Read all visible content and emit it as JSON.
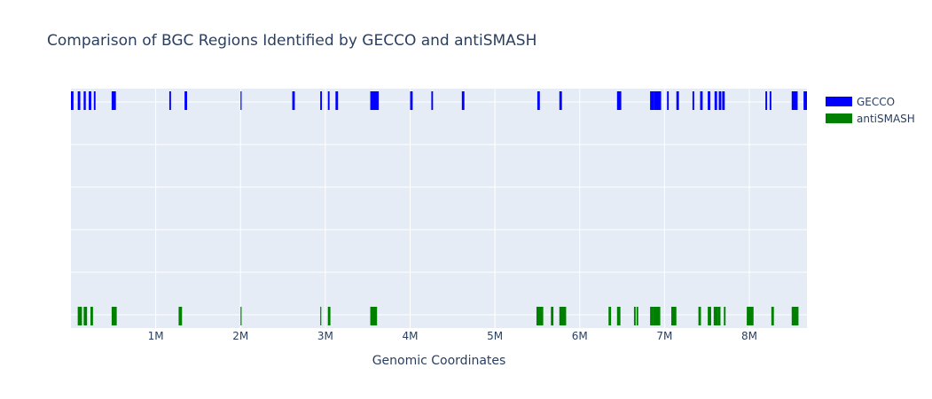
{
  "chart_data": {
    "type": "bar",
    "orientation": "horizontal-interval",
    "title": "Comparison of BGC Regions Identified by GECCO and antiSMASH",
    "xlabel": "Genomic Coordinates",
    "ylabel": "",
    "xlim": [
      0,
      8680000
    ],
    "xticks": [
      1000000,
      2000000,
      3000000,
      4000000,
      5000000,
      6000000,
      7000000,
      8000000
    ],
    "xtick_labels": [
      "1M",
      "2M",
      "3M",
      "4M",
      "5M",
      "6M",
      "7M",
      "8M"
    ],
    "grid": true,
    "legend_position": "top-right",
    "series": [
      {
        "name": "GECCO",
        "color": "#0000ff",
        "regions": [
          [
            0,
            30000
          ],
          [
            80000,
            110000
          ],
          [
            150000,
            175000
          ],
          [
            210000,
            240000
          ],
          [
            270000,
            290000
          ],
          [
            480000,
            530000
          ],
          [
            1160000,
            1180000
          ],
          [
            1340000,
            1370000
          ],
          [
            2000000,
            2010000
          ],
          [
            2610000,
            2640000
          ],
          [
            2940000,
            2960000
          ],
          [
            3030000,
            3050000
          ],
          [
            3120000,
            3150000
          ],
          [
            3530000,
            3630000
          ],
          [
            4000000,
            4030000
          ],
          [
            4250000,
            4270000
          ],
          [
            4610000,
            4640000
          ],
          [
            5500000,
            5530000
          ],
          [
            5760000,
            5790000
          ],
          [
            6440000,
            6490000
          ],
          [
            6830000,
            6880000
          ],
          [
            6880000,
            6960000
          ],
          [
            7030000,
            7050000
          ],
          [
            7140000,
            7170000
          ],
          [
            7330000,
            7350000
          ],
          [
            7420000,
            7450000
          ],
          [
            7510000,
            7540000
          ],
          [
            7590000,
            7620000
          ],
          [
            7640000,
            7670000
          ],
          [
            7680000,
            7710000
          ],
          [
            8190000,
            8210000
          ],
          [
            8240000,
            8260000
          ],
          [
            8500000,
            8570000
          ],
          [
            8640000,
            8680000
          ]
        ]
      },
      {
        "name": "antiSMASH",
        "color": "#008000",
        "regions": [
          [
            80000,
            130000
          ],
          [
            150000,
            190000
          ],
          [
            230000,
            260000
          ],
          [
            480000,
            540000
          ],
          [
            1270000,
            1310000
          ],
          [
            2000000,
            2010000
          ],
          [
            2940000,
            2950000
          ],
          [
            3030000,
            3060000
          ],
          [
            3530000,
            3610000
          ],
          [
            5490000,
            5570000
          ],
          [
            5660000,
            5690000
          ],
          [
            5760000,
            5840000
          ],
          [
            6340000,
            6370000
          ],
          [
            6440000,
            6480000
          ],
          [
            6640000,
            6660000
          ],
          [
            6670000,
            6690000
          ],
          [
            6830000,
            6870000
          ],
          [
            6870000,
            6950000
          ],
          [
            7080000,
            7140000
          ],
          [
            7400000,
            7430000
          ],
          [
            7510000,
            7550000
          ],
          [
            7580000,
            7630000
          ],
          [
            7630000,
            7660000
          ],
          [
            7700000,
            7720000
          ],
          [
            7970000,
            8050000
          ],
          [
            8260000,
            8290000
          ],
          [
            8500000,
            8580000
          ]
        ]
      }
    ]
  }
}
